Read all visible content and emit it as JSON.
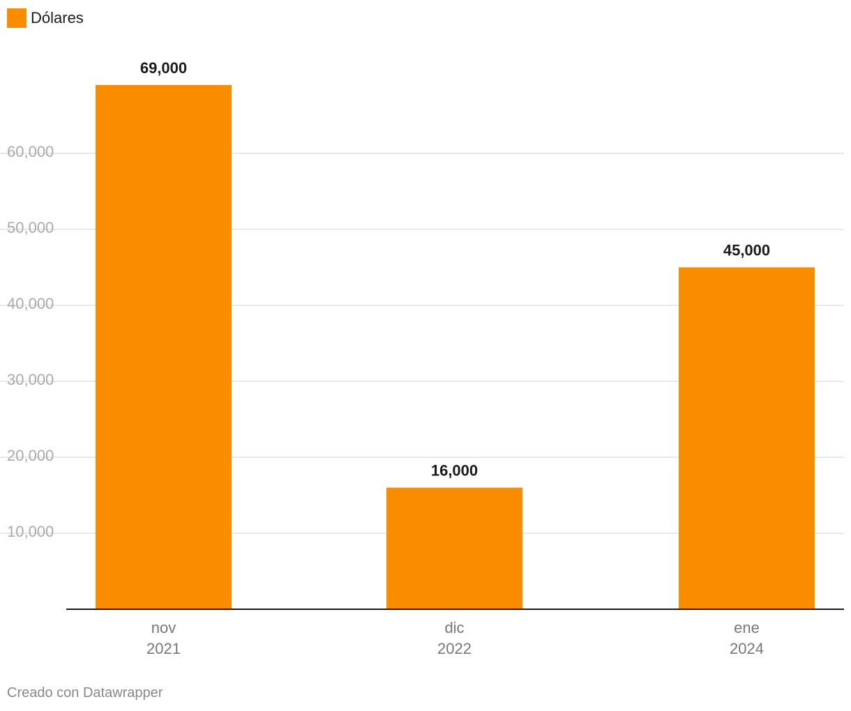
{
  "chart_data": {
    "type": "bar",
    "categories": [
      {
        "line1": "nov",
        "line2": "2021"
      },
      {
        "line1": "dic",
        "line2": "2022"
      },
      {
        "line1": "ene",
        "line2": "2024"
      }
    ],
    "series": [
      {
        "name": "Dólares",
        "values": [
          69000,
          16000,
          45000
        ],
        "color": "#fa8c00"
      }
    ],
    "value_labels": [
      "69,000",
      "16,000",
      "45,000"
    ],
    "yticks": [
      10000,
      20000,
      30000,
      40000,
      50000,
      60000
    ],
    "ytick_labels": [
      "10,000",
      "20,000",
      "30,000",
      "40,000",
      "50,000",
      "60,000"
    ],
    "ylim": [
      0,
      70000
    ],
    "grid": true,
    "legend_position": "top-left"
  },
  "footer": {
    "credit": "Creado con Datawrapper"
  },
  "colors": {
    "bar": "#fa8c00",
    "grid": "#e0e0e0",
    "axis": "#1a1a1a",
    "tick_label": "#aaaaaa",
    "category_label": "#777777",
    "value_label": "#1a1a1a"
  }
}
